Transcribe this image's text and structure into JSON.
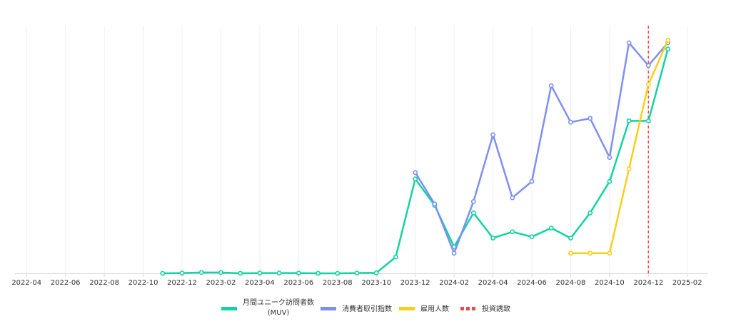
{
  "chart_data": {
    "type": "line",
    "x_ticks": [
      "2022-04",
      "2022-06",
      "2022-08",
      "2022-10",
      "2022-12",
      "2023-02",
      "2023-04",
      "2023-06",
      "2023-08",
      "2023-10",
      "2023-12",
      "2024-02",
      "2024-04",
      "2024-06",
      "2024-08",
      "2024-10",
      "2024-12",
      "2025-02"
    ],
    "x_range": [
      "2022-03",
      "2025-03"
    ],
    "y_range": [
      0,
      100
    ],
    "y_axis_visible": false,
    "grid": "vertical",
    "legend_position": "bottom-center",
    "series": [
      {
        "name": "月間ユニーク訪問者数",
        "name_line2": "(MUV)",
        "color": "#11d4a0",
        "points": [
          [
            "2022-11",
            0.0
          ],
          [
            "2022-12",
            0.1
          ],
          [
            "2023-01",
            0.3
          ],
          [
            "2023-02",
            0.3
          ],
          [
            "2023-03",
            0.0
          ],
          [
            "2023-04",
            0.1
          ],
          [
            "2023-05",
            0.1
          ],
          [
            "2023-06",
            0.1
          ],
          [
            "2023-07",
            0.0
          ],
          [
            "2023-08",
            0.0
          ],
          [
            "2023-09",
            0.1
          ],
          [
            "2023-10",
            0.2
          ],
          [
            "2023-11",
            6.5
          ],
          [
            "2023-12",
            37.5
          ],
          [
            "2024-01",
            27.0
          ],
          [
            "2024-02",
            10.5
          ],
          [
            "2024-03",
            24.0
          ],
          [
            "2024-04",
            14.0
          ],
          [
            "2024-05",
            16.5
          ],
          [
            "2024-06",
            14.5
          ],
          [
            "2024-07",
            18.0
          ],
          [
            "2024-08",
            14.0
          ],
          [
            "2024-09",
            24.0
          ],
          [
            "2024-10",
            36.5
          ],
          [
            "2024-11",
            60.5
          ],
          [
            "2024-12",
            60.5
          ],
          [
            "2025-01",
            89.0
          ]
        ]
      },
      {
        "name": "消費者取引指数",
        "color": "#7e8ff2",
        "points": [
          [
            "2023-12",
            40.0
          ],
          [
            "2024-01",
            27.5
          ],
          [
            "2024-02",
            8.0
          ],
          [
            "2024-03",
            28.5
          ],
          [
            "2024-04",
            55.0
          ],
          [
            "2024-05",
            30.0
          ],
          [
            "2024-06",
            36.5
          ],
          [
            "2024-07",
            74.5
          ],
          [
            "2024-08",
            60.0
          ],
          [
            "2024-09",
            61.5
          ],
          [
            "2024-10",
            46.0
          ],
          [
            "2024-11",
            91.5
          ],
          [
            "2024-12",
            82.5
          ],
          [
            "2025-01",
            91.5
          ]
        ]
      },
      {
        "name": "雇用人数",
        "color": "#f8cf1c",
        "points": [
          [
            "2024-08",
            8.0
          ],
          [
            "2024-09",
            8.0
          ],
          [
            "2024-10",
            8.0
          ],
          [
            "2024-11",
            41.5
          ],
          [
            "2024-12",
            75.0
          ],
          [
            "2025-01",
            92.5
          ]
        ]
      }
    ],
    "reference_lines": [
      {
        "name": "投資誘致",
        "x": "2024-12",
        "color": "#e84b4b",
        "style": "dashed"
      }
    ]
  }
}
